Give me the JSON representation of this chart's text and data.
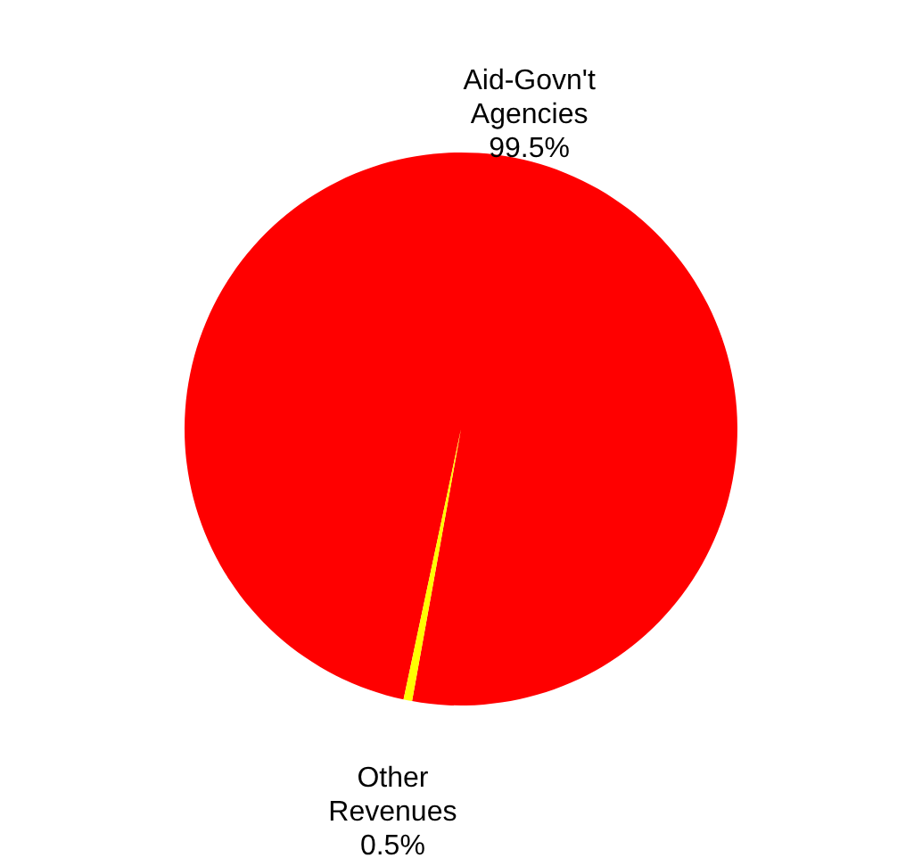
{
  "chart_data": {
    "type": "pie",
    "categories": [
      "Aid-Govn't Agencies",
      "Other Revenues"
    ],
    "values": [
      99.5,
      0.5
    ],
    "colors": [
      "#ff0000",
      "#ffff00"
    ],
    "value_labels": [
      "99.5%",
      "0.5%"
    ]
  }
}
